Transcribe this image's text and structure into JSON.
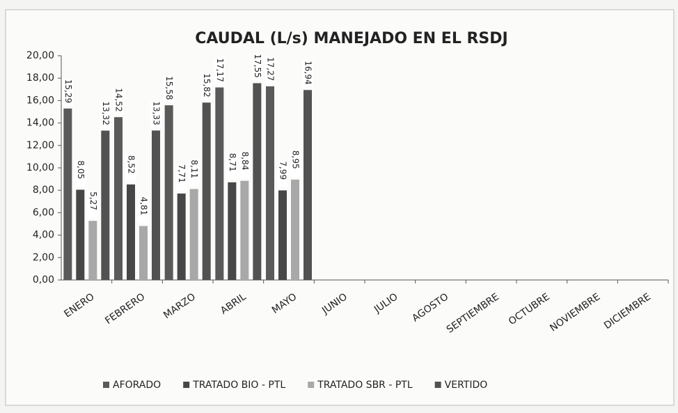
{
  "chart_data": {
    "type": "bar",
    "title": "CAUDAL (L/s) MANEJADO EN EL RSDJ",
    "categories": [
      "ENERO",
      "FEBRERO",
      "MARZO",
      "ABRIL",
      "MAYO",
      "JUNIO",
      "JULIO",
      "AGOSTO",
      "SEPTIEMBRE",
      "OCTUBRE",
      "NOVIEMBRE",
      "DICIEMBRE"
    ],
    "series": [
      {
        "name": "AFORADO",
        "color": "#5a5a5a",
        "values": [
          15.29,
          14.52,
          15.58,
          17.17,
          17.27,
          null,
          null,
          null,
          null,
          null,
          null,
          null
        ],
        "value_labels": [
          "15,29",
          "14,52",
          "15,58",
          "17,17",
          "17,27",
          null,
          null,
          null,
          null,
          null,
          null,
          null
        ]
      },
      {
        "name": "TRATADO BIO - PTL",
        "color": "#474747",
        "values": [
          8.05,
          8.52,
          7.71,
          8.71,
          7.99,
          null,
          null,
          null,
          null,
          null,
          null,
          null
        ],
        "value_labels": [
          "8,05",
          "8,52",
          "7,71",
          "8,71",
          "7,99",
          null,
          null,
          null,
          null,
          null,
          null,
          null
        ]
      },
      {
        "name": "TRATADO SBR - PTL",
        "color": "#a8a8a8",
        "values": [
          5.27,
          4.81,
          8.11,
          8.84,
          8.95,
          null,
          null,
          null,
          null,
          null,
          null,
          null
        ],
        "value_labels": [
          "5,27",
          "4,81",
          "8,11",
          "8,84",
          "8,95",
          null,
          null,
          null,
          null,
          null,
          null,
          null
        ]
      },
      {
        "name": "VERTIDO",
        "color": "#525252",
        "values": [
          13.32,
          13.33,
          15.82,
          17.55,
          16.94,
          null,
          null,
          null,
          null,
          null,
          null,
          null
        ],
        "value_labels": [
          "13,32",
          "13,33",
          "15,82",
          "17,55",
          "16,94",
          null,
          null,
          null,
          null,
          null,
          null,
          null
        ]
      }
    ],
    "ylim": [
      0,
      20
    ],
    "yticks": [
      {
        "value": 0,
        "label": "0,00"
      },
      {
        "value": 2,
        "label": "2,00"
      },
      {
        "value": 4,
        "label": "4,00"
      },
      {
        "value": 6,
        "label": "6,00"
      },
      {
        "value": 8,
        "label": "8,00"
      },
      {
        "value": 10,
        "label": "10,00"
      },
      {
        "value": 12,
        "label": "12,00"
      },
      {
        "value": 14,
        "label": "14,00"
      },
      {
        "value": 16,
        "label": "16,00"
      },
      {
        "value": 18,
        "label": "18,00"
      },
      {
        "value": 20,
        "label": "20,00"
      }
    ],
    "legend": "bottom"
  }
}
